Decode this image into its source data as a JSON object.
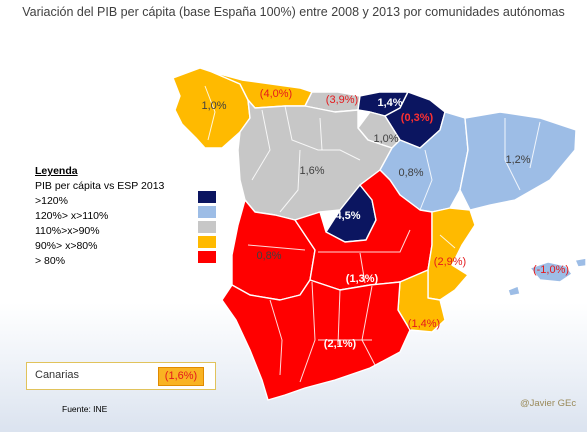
{
  "title": "Variación del PIB per cápita (base España 100%) entre 2008 y 2013 por comunidades autónomas",
  "legend": {
    "heading": "Leyenda",
    "subheading": "PIB per cápita vs ESP 2013",
    "items": [
      {
        "label": ">120%",
        "color": "#0b1560"
      },
      {
        "label": "120%> x>110%",
        "color": "#9dbde6"
      },
      {
        "label": "110%>x>90%",
        "color": "#c7c7c7"
      },
      {
        "label": "90%> x>80%",
        "color": "#ffba00"
      },
      {
        "label": "> 80%",
        "color": "#ff0000"
      }
    ]
  },
  "regions": {
    "galicia": {
      "value": "1,0%",
      "color": "#ffba00"
    },
    "asturias": {
      "value": "(4,0%)",
      "color": "#ffba00"
    },
    "cantabria": {
      "value": "(3,9%)",
      "color": "#c7c7c7"
    },
    "pais_vasco": {
      "value": "1,4%",
      "color": "#0b1560"
    },
    "navarra": {
      "value": "(0,3%)",
      "color": "#0b1560"
    },
    "la_rioja": {
      "value": "1,0%",
      "color": "#c7c7c7"
    },
    "castilla_leon": {
      "value": "1,6%",
      "color": "#c7c7c7"
    },
    "aragon": {
      "value": "0,8%",
      "color": "#9dbde6"
    },
    "cataluna": {
      "value": "1,2%",
      "color": "#9dbde6"
    },
    "madrid": {
      "value": "4,5%",
      "color": "#0b1560"
    },
    "extremadura": {
      "value": "0,8%",
      "color": "#ff0000"
    },
    "castilla_la_mancha": {
      "value": "(1,3%)",
      "color": "#ff0000"
    },
    "valencia": {
      "value": "(2,9%)",
      "color": "#ffba00"
    },
    "baleares": {
      "value": "(-1,0%)",
      "color": "#9dbde6"
    },
    "murcia": {
      "value": "(1,4%)",
      "color": "#ffba00"
    },
    "andalucia": {
      "value": "(2,1%)",
      "color": "#ff0000"
    }
  },
  "canarias": {
    "name": "Canarias",
    "value": "(1,6%)",
    "color": "#ffba00"
  },
  "source": "Fuente: INE",
  "credit": "@Javier GEc"
}
